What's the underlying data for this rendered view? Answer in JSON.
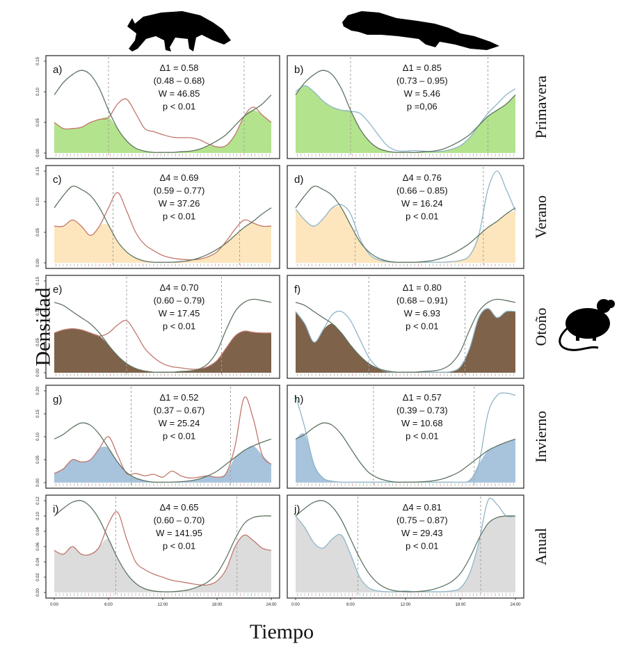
{
  "figure": {
    "ylabel": "Densidad",
    "xlabel": "Tiempo",
    "seasons": [
      "Primavera",
      "Verano",
      "Otoño",
      "Invierno",
      "Anual"
    ],
    "x_ticks": [
      "0:00",
      "6:00",
      "12:00",
      "18:00",
      "24:00"
    ]
  },
  "colors": {
    "Primavera": "#b3e38d",
    "Verano": "#fde6bd",
    "Otoño": "#7e624a",
    "Invierno": "#a8c3dc",
    "Anual": "#dcdcdc",
    "mouse_curve": "#5e7462",
    "fox_curve": "#c0776c",
    "marten_curve": "#8db5c8",
    "dashed_line": "#a0a0a0"
  },
  "chart_data": [
    {
      "panel": "a)",
      "season": "Primavera",
      "predator": "fox",
      "type": "line",
      "stat": [
        "Δ1 = 0.58",
        "(0.48 – 0.68)",
        "W = 46.85",
        "p < 0.01"
      ],
      "xlim": [
        0,
        24
      ],
      "ylim": [
        0,
        0.15
      ],
      "yticks": [
        0,
        0.05,
        0.1,
        0.15
      ],
      "dashed": [
        6.0,
        21.0
      ],
      "x": [
        0,
        1,
        2,
        3,
        4,
        5,
        6,
        7,
        8,
        9,
        10,
        11,
        12,
        13,
        14,
        15,
        16,
        17,
        18,
        19,
        20,
        21,
        22,
        23,
        24
      ],
      "mouse": [
        0.095,
        0.115,
        0.128,
        0.135,
        0.128,
        0.105,
        0.07,
        0.04,
        0.02,
        0.008,
        0.003,
        0.001,
        0.001,
        0.001,
        0.002,
        0.003,
        0.006,
        0.012,
        0.02,
        0.03,
        0.045,
        0.06,
        0.07,
        0.08,
        0.095
      ],
      "predator_density": [
        0.05,
        0.04,
        0.04,
        0.042,
        0.05,
        0.055,
        0.058,
        0.08,
        0.088,
        0.065,
        0.04,
        0.035,
        0.03,
        0.026,
        0.025,
        0.025,
        0.022,
        0.015,
        0.01,
        0.012,
        0.03,
        0.06,
        0.075,
        0.062,
        0.05
      ]
    },
    {
      "panel": "b)",
      "season": "Primavera",
      "predator": "marten",
      "type": "line",
      "stat": [
        "Δ1 = 0.85",
        "(0.73 – 0.95)",
        "W = 5.46",
        "p =0,06"
      ],
      "xlim": [
        0,
        24
      ],
      "ylim": [
        0,
        0.15
      ],
      "yticks": [
        0,
        0.05,
        0.1,
        0.15
      ],
      "dashed": [
        6.0,
        21.0
      ],
      "x": [
        0,
        1,
        2,
        3,
        4,
        5,
        6,
        7,
        8,
        9,
        10,
        11,
        12,
        13,
        14,
        15,
        16,
        17,
        18,
        19,
        20,
        21,
        22,
        23,
        24
      ],
      "mouse": [
        0.095,
        0.115,
        0.128,
        0.135,
        0.128,
        0.105,
        0.07,
        0.04,
        0.02,
        0.008,
        0.003,
        0.001,
        0.001,
        0.001,
        0.002,
        0.003,
        0.006,
        0.012,
        0.02,
        0.03,
        0.045,
        0.06,
        0.07,
        0.08,
        0.095
      ],
      "predator_density": [
        0.1,
        0.11,
        0.1,
        0.085,
        0.075,
        0.07,
        0.068,
        0.065,
        0.05,
        0.03,
        0.012,
        0.004,
        0.003,
        0.004,
        0.003,
        0.002,
        0.003,
        0.006,
        0.012,
        0.025,
        0.045,
        0.065,
        0.08,
        0.095,
        0.105
      ]
    },
    {
      "panel": "c)",
      "season": "Verano",
      "predator": "fox",
      "type": "line",
      "stat": [
        "Δ4 = 0.69",
        "(0.59 – 0.77)",
        "W = 37.26",
        "p < 0.01"
      ],
      "xlim": [
        0,
        24
      ],
      "ylim": [
        0,
        0.15
      ],
      "yticks": [
        0,
        0.05,
        0.1,
        0.15
      ],
      "dashed": [
        6.5,
        20.5
      ],
      "x": [
        0,
        1,
        2,
        3,
        4,
        5,
        6,
        7,
        8,
        9,
        10,
        11,
        12,
        13,
        14,
        15,
        16,
        17,
        18,
        19,
        20,
        21,
        22,
        23,
        24
      ],
      "mouse": [
        0.09,
        0.11,
        0.125,
        0.12,
        0.11,
        0.09,
        0.062,
        0.035,
        0.018,
        0.008,
        0.003,
        0.001,
        0.001,
        0.001,
        0.002,
        0.004,
        0.008,
        0.014,
        0.022,
        0.032,
        0.045,
        0.058,
        0.068,
        0.08,
        0.09
      ],
      "predator_density": [
        0.06,
        0.06,
        0.07,
        0.06,
        0.045,
        0.06,
        0.09,
        0.115,
        0.085,
        0.05,
        0.03,
        0.02,
        0.012,
        0.008,
        0.006,
        0.005,
        0.006,
        0.01,
        0.018,
        0.035,
        0.055,
        0.07,
        0.065,
        0.06,
        0.06
      ]
    },
    {
      "panel": "d)",
      "season": "Verano",
      "predator": "marten",
      "type": "line",
      "stat": [
        "Δ4 = 0.76",
        "(0.66 – 0.85)",
        "W = 16.24",
        "p < 0.01"
      ],
      "xlim": [
        0,
        24
      ],
      "ylim": [
        0,
        0.15
      ],
      "yticks": [
        0,
        0.05,
        0.1,
        0.15
      ],
      "dashed": [
        6.5,
        20.5
      ],
      "x": [
        0,
        1,
        2,
        3,
        4,
        5,
        6,
        7,
        8,
        9,
        10,
        11,
        12,
        13,
        14,
        15,
        16,
        17,
        18,
        19,
        20,
        21,
        22,
        23,
        24
      ],
      "mouse": [
        0.09,
        0.11,
        0.125,
        0.12,
        0.11,
        0.09,
        0.062,
        0.035,
        0.018,
        0.008,
        0.003,
        0.001,
        0.001,
        0.001,
        0.002,
        0.004,
        0.008,
        0.014,
        0.022,
        0.032,
        0.045,
        0.058,
        0.068,
        0.08,
        0.09
      ],
      "predator_density": [
        0.088,
        0.07,
        0.06,
        0.072,
        0.09,
        0.095,
        0.08,
        0.04,
        0.015,
        0.005,
        0.002,
        0.001,
        0.001,
        0.001,
        0.001,
        0.001,
        0.001,
        0.002,
        0.004,
        0.012,
        0.045,
        0.12,
        0.15,
        0.12,
        0.085
      ]
    },
    {
      "panel": "e)",
      "season": "Otoño",
      "predator": "fox",
      "type": "line",
      "stat": [
        "Δ4 = 0.70",
        "(0.60 – 0.79)",
        "W = 17.45",
        "p < 0.01"
      ],
      "xlim": [
        0,
        24
      ],
      "ylim": [
        0,
        0.15
      ],
      "yticks": [
        0,
        0.05,
        0.1,
        0.15
      ],
      "dashed": [
        8.0,
        18.5
      ],
      "x": [
        0,
        1,
        2,
        3,
        4,
        5,
        6,
        7,
        8,
        9,
        10,
        11,
        12,
        13,
        14,
        15,
        16,
        17,
        18,
        19,
        20,
        21,
        22,
        23,
        24
      ],
      "mouse": [
        0.115,
        0.11,
        0.1,
        0.09,
        0.08,
        0.065,
        0.045,
        0.028,
        0.015,
        0.007,
        0.003,
        0.001,
        0.001,
        0.001,
        0.002,
        0.003,
        0.006,
        0.015,
        0.035,
        0.07,
        0.1,
        0.115,
        0.12,
        0.118,
        0.115
      ],
      "predator_density": [
        0.065,
        0.07,
        0.072,
        0.07,
        0.065,
        0.06,
        0.065,
        0.078,
        0.085,
        0.065,
        0.04,
        0.025,
        0.015,
        0.01,
        0.008,
        0.006,
        0.006,
        0.01,
        0.02,
        0.04,
        0.06,
        0.068,
        0.066,
        0.065,
        0.065
      ]
    },
    {
      "panel": "f)",
      "season": "Otoño",
      "predator": "marten",
      "type": "line",
      "stat": [
        "Δ1 = 0.80",
        "(0.68 – 0.91)",
        "W = 6.93",
        "p < 0.01"
      ],
      "xlim": [
        0,
        24
      ],
      "ylim": [
        0,
        0.15
      ],
      "yticks": [
        0,
        0.05,
        0.1,
        0.15
      ],
      "dashed": [
        8.0,
        18.5
      ],
      "x": [
        0,
        1,
        2,
        3,
        4,
        5,
        6,
        7,
        8,
        9,
        10,
        11,
        12,
        13,
        14,
        15,
        16,
        17,
        18,
        19,
        20,
        21,
        22,
        23,
        24
      ],
      "mouse": [
        0.115,
        0.11,
        0.1,
        0.09,
        0.08,
        0.065,
        0.045,
        0.028,
        0.015,
        0.007,
        0.003,
        0.001,
        0.001,
        0.001,
        0.002,
        0.003,
        0.006,
        0.015,
        0.035,
        0.07,
        0.1,
        0.115,
        0.12,
        0.118,
        0.115
      ],
      "predator_density": [
        0.1,
        0.08,
        0.05,
        0.07,
        0.095,
        0.1,
        0.085,
        0.055,
        0.025,
        0.008,
        0.002,
        0.001,
        0.001,
        0.001,
        0.001,
        0.001,
        0.001,
        0.002,
        0.01,
        0.04,
        0.09,
        0.105,
        0.09,
        0.1,
        0.1
      ]
    },
    {
      "panel": "g)",
      "season": "Invierno",
      "predator": "fox",
      "type": "line",
      "stat": [
        "Δ1 = 0.52",
        "(0.37 – 0.67)",
        "W = 25.24",
        "p < 0.01"
      ],
      "xlim": [
        0,
        24
      ],
      "ylim": [
        0,
        0.2
      ],
      "yticks": [
        0,
        0.05,
        0.1,
        0.15,
        0.2
      ],
      "dashed": [
        8.5,
        19.5
      ],
      "x": [
        0,
        1,
        2,
        3,
        4,
        5,
        6,
        7,
        8,
        9,
        10,
        11,
        12,
        13,
        14,
        15,
        16,
        17,
        18,
        19,
        20,
        21,
        22,
        23,
        24
      ],
      "mouse": [
        0.095,
        0.105,
        0.12,
        0.13,
        0.125,
        0.105,
        0.075,
        0.045,
        0.022,
        0.01,
        0.004,
        0.001,
        0.001,
        0.001,
        0.002,
        0.004,
        0.008,
        0.015,
        0.025,
        0.04,
        0.055,
        0.07,
        0.08,
        0.088,
        0.095
      ],
      "predator_density": [
        0.02,
        0.03,
        0.05,
        0.045,
        0.05,
        0.075,
        0.1,
        0.06,
        0.02,
        0.02,
        0.015,
        0.018,
        0.012,
        0.025,
        0.015,
        0.01,
        0.012,
        0.015,
        0.012,
        0.02,
        0.08,
        0.185,
        0.14,
        0.06,
        0.04
      ]
    },
    {
      "panel": "h)",
      "season": "Invierno",
      "predator": "marten",
      "type": "line",
      "stat": [
        "Δ1 = 0.57",
        "(0.39 – 0.73)",
        "W = 10.68",
        "p < 0.01"
      ],
      "xlim": [
        0,
        24
      ],
      "ylim": [
        0,
        0.2
      ],
      "yticks": [
        0,
        0.05,
        0.1,
        0.15,
        0.2
      ],
      "dashed": [
        8.5,
        19.5
      ],
      "x": [
        0,
        1,
        2,
        3,
        4,
        5,
        6,
        7,
        8,
        9,
        10,
        11,
        12,
        13,
        14,
        15,
        16,
        17,
        18,
        19,
        20,
        21,
        22,
        23,
        24
      ],
      "mouse": [
        0.095,
        0.105,
        0.12,
        0.13,
        0.125,
        0.105,
        0.075,
        0.045,
        0.022,
        0.01,
        0.004,
        0.001,
        0.001,
        0.001,
        0.002,
        0.004,
        0.008,
        0.015,
        0.025,
        0.04,
        0.055,
        0.07,
        0.08,
        0.088,
        0.095
      ],
      "predator_density": [
        0.19,
        0.12,
        0.04,
        0.01,
        0.003,
        0.001,
        0.001,
        0.001,
        0.001,
        0.001,
        0.001,
        0.001,
        0.001,
        0.001,
        0.001,
        0.001,
        0.001,
        0.001,
        0.001,
        0.005,
        0.04,
        0.15,
        0.19,
        0.195,
        0.19
      ]
    },
    {
      "panel": "i)",
      "season": "Anual",
      "predator": "fox",
      "type": "line",
      "stat": [
        "Δ4 = 0.65",
        "(0.60 – 0.70)",
        "W = 141.95",
        "p < 0.01"
      ],
      "xlim": [
        0,
        24
      ],
      "ylim": [
        0,
        0.12
      ],
      "yticks": [
        0,
        0.02,
        0.04,
        0.06,
        0.08,
        0.1,
        0.12
      ],
      "dashed": [
        6.8,
        20.2
      ],
      "x": [
        0,
        1,
        2,
        3,
        4,
        5,
        6,
        7,
        8,
        9,
        10,
        11,
        12,
        13,
        14,
        15,
        16,
        17,
        18,
        19,
        20,
        21,
        22,
        23,
        24
      ],
      "mouse": [
        0.1,
        0.11,
        0.118,
        0.12,
        0.112,
        0.095,
        0.07,
        0.045,
        0.025,
        0.012,
        0.005,
        0.002,
        0.001,
        0.001,
        0.002,
        0.004,
        0.008,
        0.014,
        0.025,
        0.045,
        0.07,
        0.09,
        0.098,
        0.1,
        0.1
      ],
      "predator_density": [
        0.055,
        0.05,
        0.06,
        0.05,
        0.05,
        0.06,
        0.09,
        0.105,
        0.07,
        0.04,
        0.03,
        0.024,
        0.02,
        0.016,
        0.014,
        0.012,
        0.01,
        0.01,
        0.015,
        0.03,
        0.06,
        0.075,
        0.068,
        0.058,
        0.055
      ]
    },
    {
      "panel": "j)",
      "season": "Anual",
      "predator": "marten",
      "type": "line",
      "stat": [
        "Δ4 = 0.81",
        "(0.75 – 0.87)",
        "W = 29.43",
        "p < 0.01"
      ],
      "xlim": [
        0,
        24
      ],
      "ylim": [
        0,
        0.12
      ],
      "yticks": [
        0,
        0.02,
        0.04,
        0.06,
        0.08,
        0.1,
        0.12
      ],
      "dashed": [
        6.8,
        20.2
      ],
      "x": [
        0,
        1,
        2,
        3,
        4,
        5,
        6,
        7,
        8,
        9,
        10,
        11,
        12,
        13,
        14,
        15,
        16,
        17,
        18,
        19,
        20,
        21,
        22,
        23,
        24
      ],
      "mouse": [
        0.1,
        0.11,
        0.118,
        0.12,
        0.112,
        0.095,
        0.07,
        0.045,
        0.025,
        0.012,
        0.005,
        0.002,
        0.001,
        0.001,
        0.002,
        0.004,
        0.008,
        0.014,
        0.025,
        0.045,
        0.07,
        0.09,
        0.098,
        0.1,
        0.1
      ],
      "predator_density": [
        0.1,
        0.085,
        0.065,
        0.058,
        0.07,
        0.075,
        0.05,
        0.02,
        0.006,
        0.002,
        0.001,
        0.001,
        0.002,
        0.001,
        0.001,
        0.001,
        0.001,
        0.002,
        0.006,
        0.025,
        0.065,
        0.12,
        0.115,
        0.1,
        0.1
      ]
    }
  ]
}
